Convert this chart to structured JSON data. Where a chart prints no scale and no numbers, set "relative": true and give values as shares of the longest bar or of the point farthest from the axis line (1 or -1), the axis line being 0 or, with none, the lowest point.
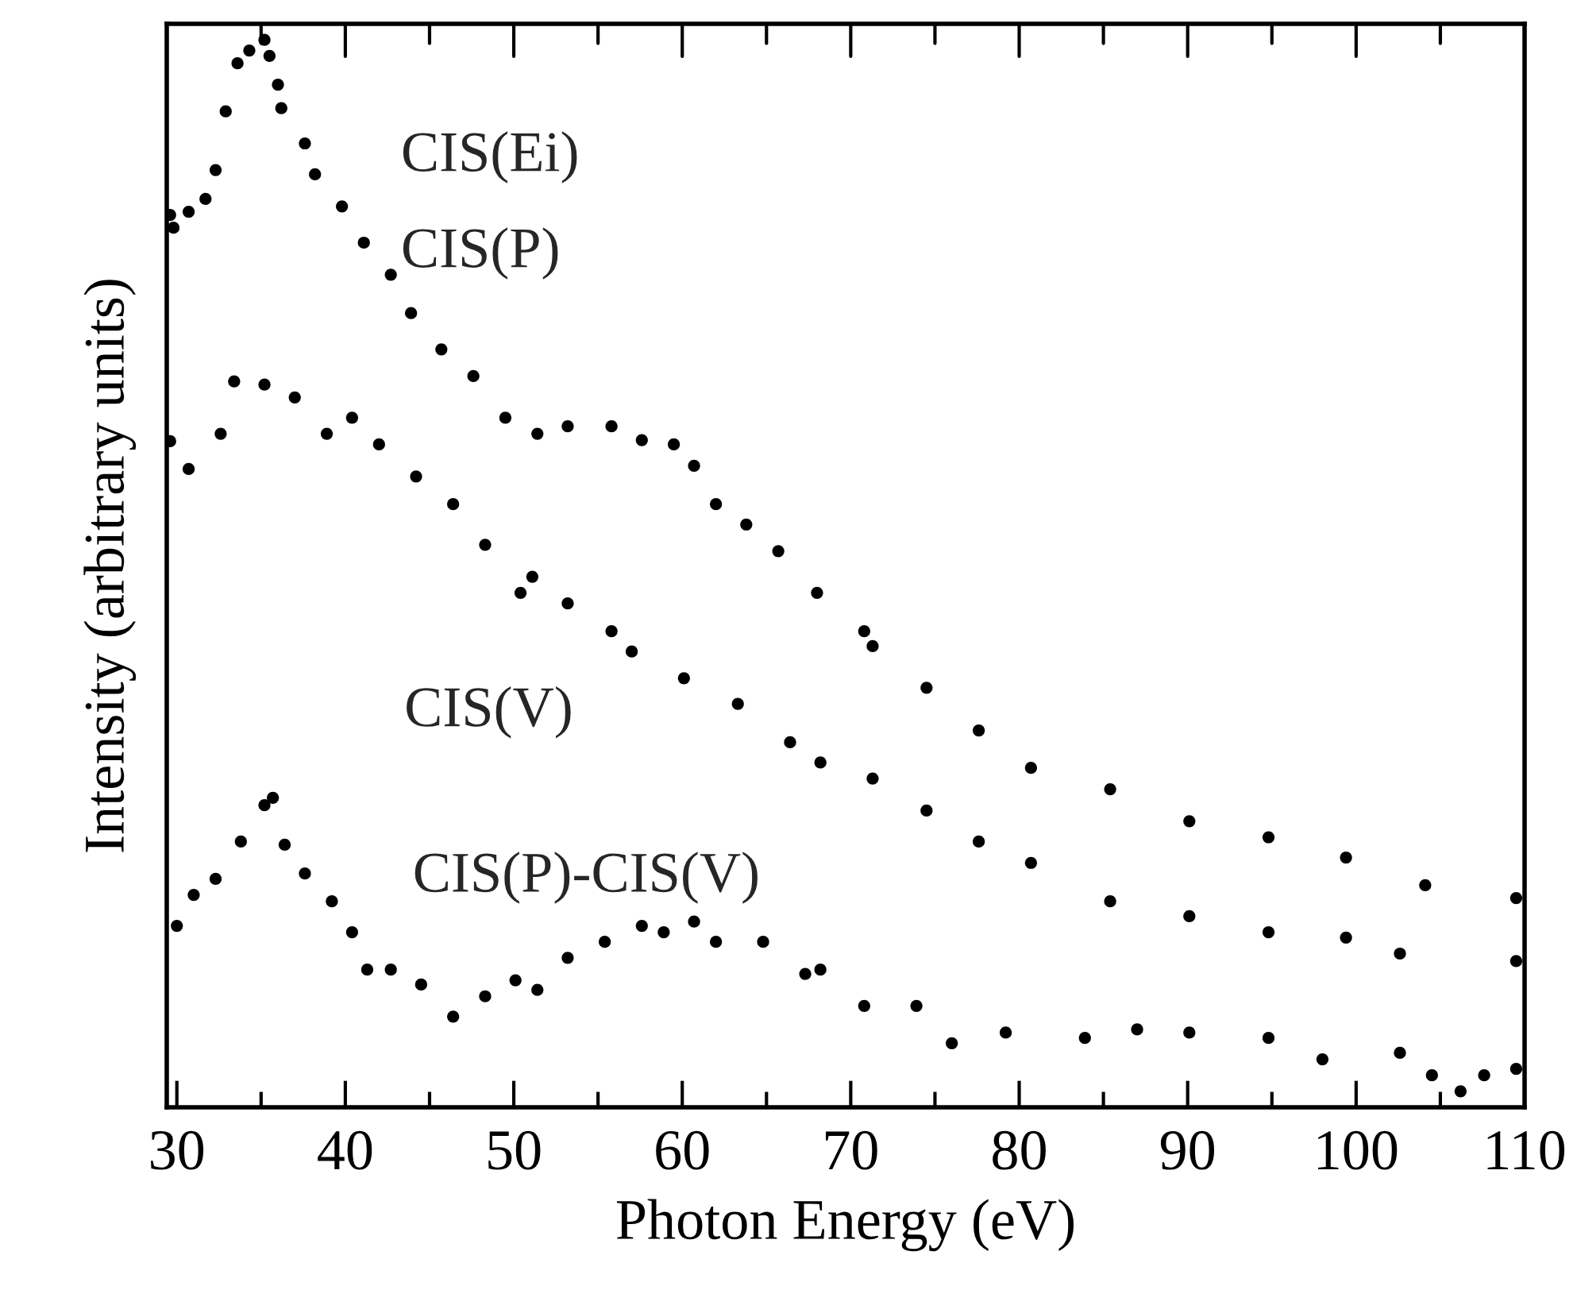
{
  "chart_data": {
    "type": "scatter",
    "relative": true,
    "xlabel": "Photon Energy (eV)",
    "ylabel": "Intensity (arbitrary units)",
    "xlim": [
      29.4,
      110
    ],
    "xticks": [
      30,
      {
        "value": 35,
        "label": null
      },
      40,
      {
        "value": 45,
        "label": null
      },
      50,
      {
        "value": 55,
        "label": null
      },
      60,
      {
        "value": 65,
        "label": null
      },
      70,
      {
        "value": 75,
        "label": null
      },
      80,
      {
        "value": 85,
        "label": null
      },
      90,
      {
        "value": 95,
        "label": null
      },
      100,
      {
        "value": 105,
        "label": null
      },
      110
    ],
    "marker": "circle",
    "grid": false,
    "legend": false,
    "annotations": [
      "CIS(Ei)"
    ],
    "series": [
      {
        "name": "CIS(P)",
        "color": "#000000",
        "x": [
          29.6,
          29.8,
          30.7,
          31.7,
          32.3,
          32.9,
          33.6,
          34.3,
          35.2,
          35.5,
          36.0,
          36.2,
          37.6,
          38.2,
          39.8,
          41.1,
          42.7,
          43.9,
          45.7,
          47.6,
          49.5,
          51.4,
          53.2,
          55.8,
          57.6,
          59.5,
          60.7,
          62.0,
          63.8,
          65.7,
          68.0,
          70.8,
          71.3,
          74.5,
          77.6,
          80.7,
          85.4,
          90.1,
          94.8,
          99.4,
          104.1,
          109.5
        ],
        "values": [
          0.836,
          0.824,
          0.839,
          0.851,
          0.878,
          0.933,
          0.978,
          0.99,
          1.0,
          0.985,
          0.958,
          0.936,
          0.903,
          0.874,
          0.844,
          0.81,
          0.78,
          0.744,
          0.71,
          0.685,
          0.646,
          0.631,
          0.638,
          0.638,
          0.625,
          0.621,
          0.601,
          0.565,
          0.546,
          0.521,
          0.482,
          0.446,
          0.432,
          0.393,
          0.353,
          0.318,
          0.298,
          0.268,
          0.253,
          0.234,
          0.208,
          0.196
        ]
      },
      {
        "name": "CIS(V)",
        "color": "#000000",
        "x": [
          29.6,
          30.7,
          32.6,
          33.4,
          35.2,
          37.0,
          38.9,
          40.4,
          42.0,
          44.2,
          46.4,
          48.3,
          50.4,
          51.1,
          53.2,
          55.8,
          57.0,
          60.1,
          63.3,
          66.4,
          68.2,
          71.3,
          74.5,
          77.6,
          80.7,
          85.4,
          90.1,
          94.8,
          99.4,
          102.6,
          109.5
        ],
        "values": [
          0.624,
          0.598,
          0.631,
          0.68,
          0.677,
          0.665,
          0.631,
          0.646,
          0.621,
          0.591,
          0.565,
          0.527,
          0.482,
          0.497,
          0.472,
          0.446,
          0.427,
          0.402,
          0.378,
          0.342,
          0.323,
          0.308,
          0.278,
          0.249,
          0.229,
          0.193,
          0.179,
          0.164,
          0.159,
          0.144,
          0.137
        ]
      },
      {
        "name": "CIS(P)-CIS(V)",
        "color": "#000000",
        "x": [
          30.0,
          31.0,
          32.3,
          33.8,
          35.2,
          35.7,
          36.4,
          37.6,
          39.2,
          40.4,
          41.3,
          42.7,
          44.5,
          46.4,
          48.3,
          50.1,
          51.4,
          53.2,
          55.4,
          57.6,
          58.9,
          60.7,
          62.0,
          64.8,
          67.3,
          68.2,
          70.8,
          73.9,
          76.0,
          79.2,
          83.9,
          87.0,
          90.1,
          94.8,
          98.0,
          102.6,
          104.5,
          106.2,
          107.6,
          109.5
        ],
        "values": [
          0.17,
          0.199,
          0.214,
          0.249,
          0.283,
          0.29,
          0.246,
          0.219,
          0.193,
          0.164,
          0.129,
          0.129,
          0.115,
          0.085,
          0.104,
          0.119,
          0.11,
          0.14,
          0.155,
          0.17,
          0.164,
          0.174,
          0.155,
          0.155,
          0.125,
          0.129,
          0.095,
          0.095,
          0.06,
          0.07,
          0.065,
          0.073,
          0.07,
          0.065,
          0.045,
          0.051,
          0.03,
          0.015,
          0.03,
          0.036
        ]
      }
    ]
  }
}
